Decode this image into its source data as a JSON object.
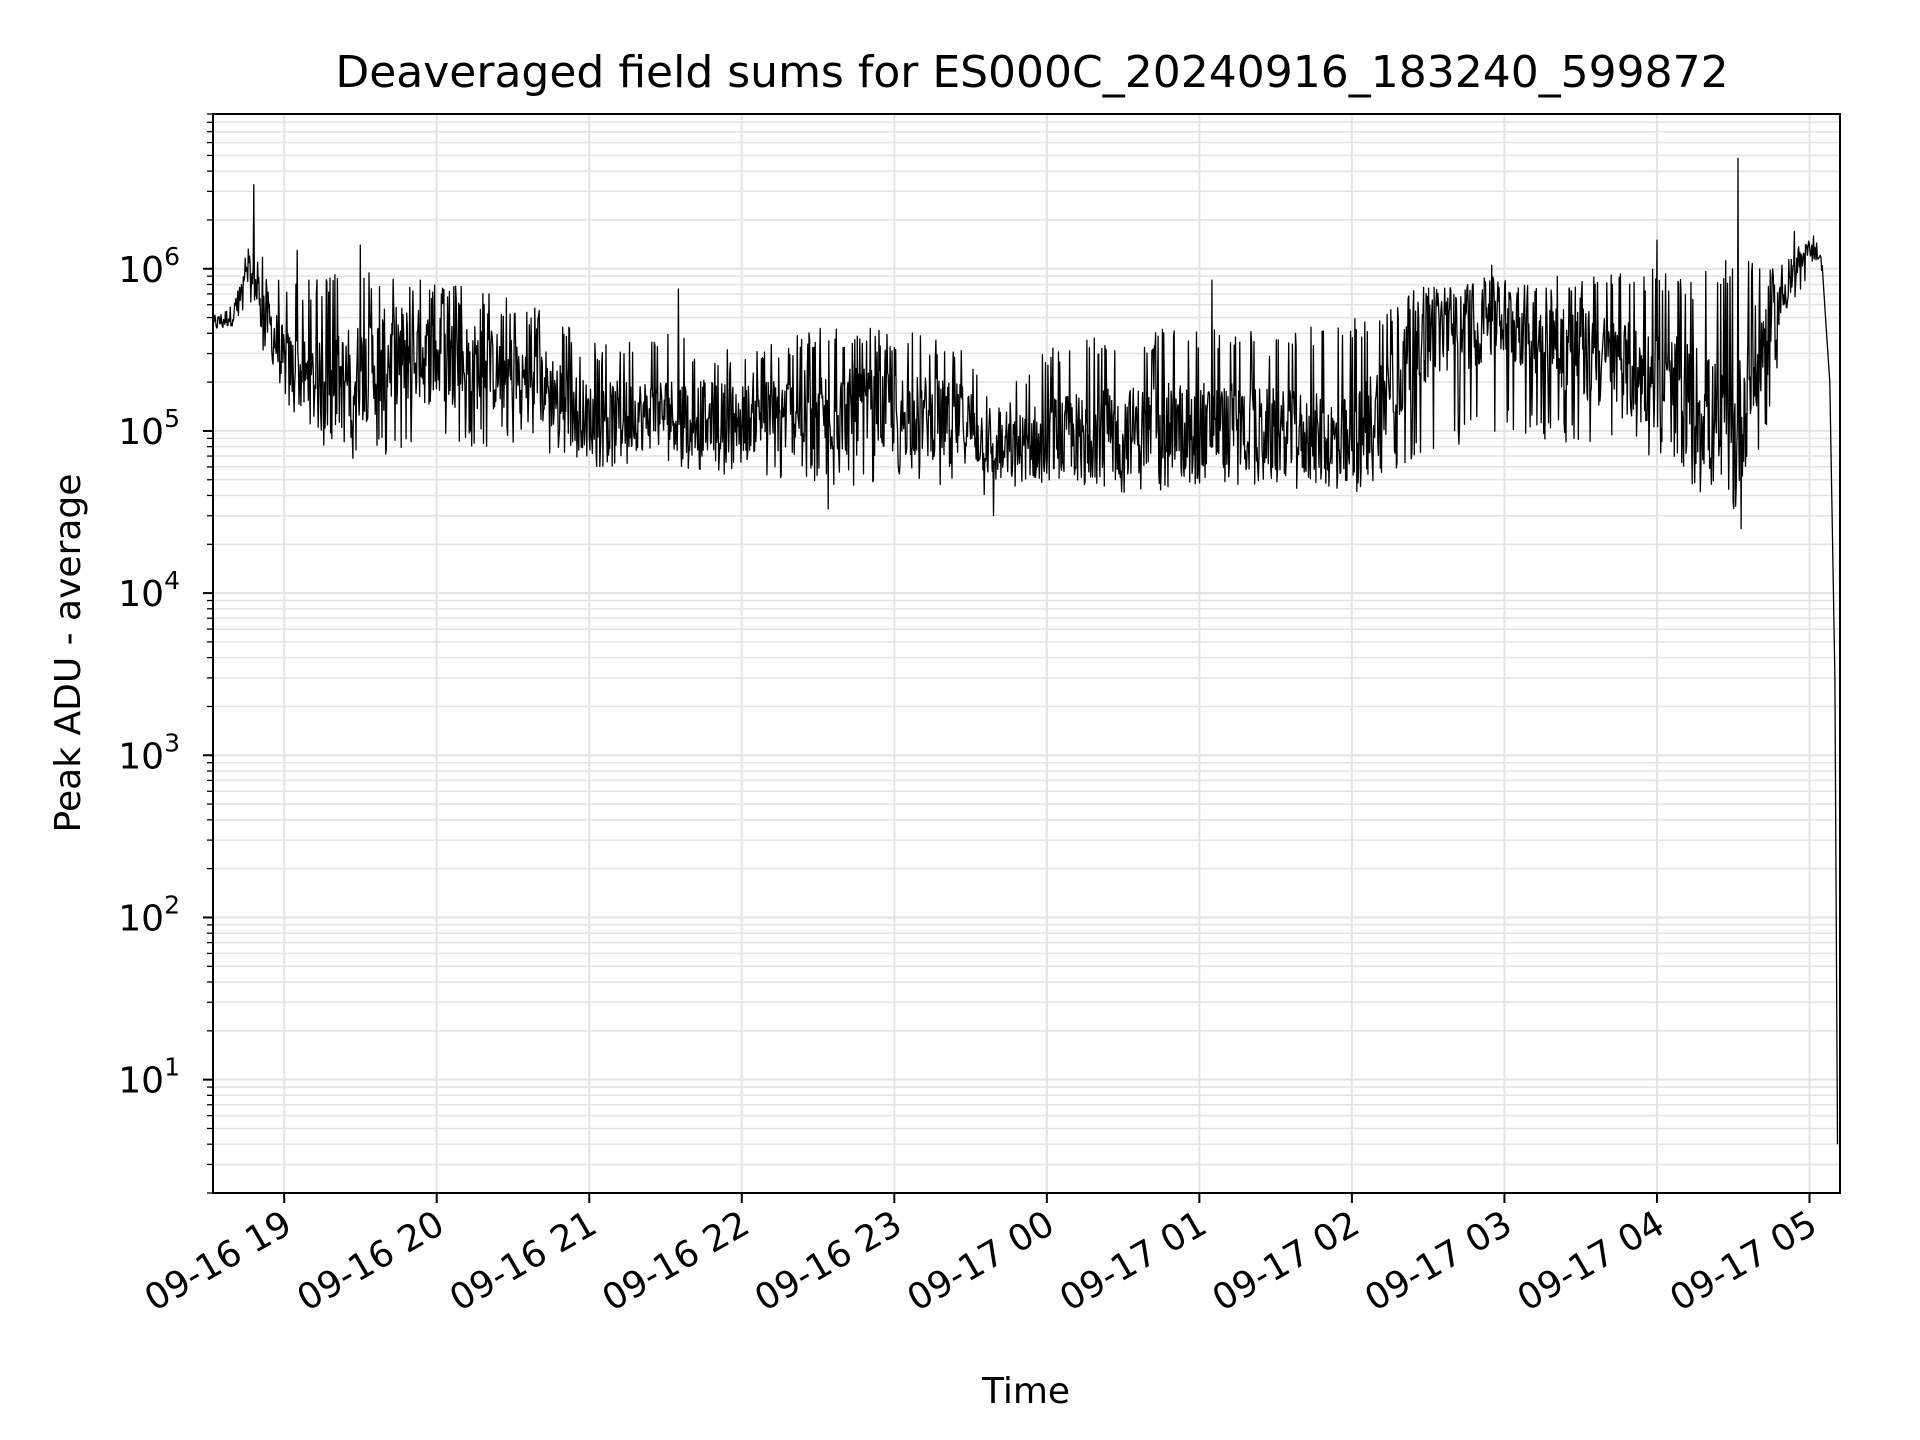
{
  "chart_data": {
    "type": "line",
    "title": "Deaveraged field sums for ES000C_20240916_183240_599872",
    "xlabel": "Time",
    "ylabel": "Peak ADU - average",
    "yscale": "log",
    "grid": true,
    "grid_color": "#e3e3e3",
    "line_color": "#000000",
    "legend": "none",
    "xlim": [
      "2024-09-16 18:32",
      "2024-09-17 05:12"
    ],
    "ylim": [
      2,
      9000000
    ],
    "x_ticks": [
      {
        "t": "2024-09-16 19:00",
        "label": "09-16 19"
      },
      {
        "t": "2024-09-16 20:00",
        "label": "09-16 20"
      },
      {
        "t": "2024-09-16 21:00",
        "label": "09-16 21"
      },
      {
        "t": "2024-09-16 22:00",
        "label": "09-16 22"
      },
      {
        "t": "2024-09-16 23:00",
        "label": "09-16 23"
      },
      {
        "t": "2024-09-17 00:00",
        "label": "09-17 00"
      },
      {
        "t": "2024-09-17 01:00",
        "label": "09-17 01"
      },
      {
        "t": "2024-09-17 02:00",
        "label": "09-17 02"
      },
      {
        "t": "2024-09-17 03:00",
        "label": "09-17 03"
      },
      {
        "t": "2024-09-17 04:00",
        "label": "09-17 04"
      },
      {
        "t": "2024-09-17 05:00",
        "label": "09-17 05"
      }
    ],
    "y_ticks": [
      {
        "value": 10,
        "base": "10",
        "exp": "1"
      },
      {
        "value": 100,
        "base": "10",
        "exp": "2"
      },
      {
        "value": 1000,
        "base": "10",
        "exp": "3"
      },
      {
        "value": 10000,
        "base": "10",
        "exp": "4"
      },
      {
        "value": 100000,
        "base": "10",
        "exp": "5"
      },
      {
        "value": 1000000,
        "base": "10",
        "exp": "6"
      }
    ],
    "series": [
      {
        "envelope": [
          {
            "t": "2024-09-16 18:32",
            "low": 380000,
            "mid": 450000,
            "high": 550000
          },
          {
            "t": "2024-09-16 18:40",
            "low": 400000,
            "mid": 520000,
            "high": 700000
          },
          {
            "t": "2024-09-16 18:46",
            "low": 500000,
            "mid": 900000,
            "high": 1500000
          },
          {
            "t": "2024-09-16 18:50",
            "low": 350000,
            "mid": 700000,
            "high": 1300000
          },
          {
            "t": "2024-09-16 19:00",
            "low": 150000,
            "mid": 260000,
            "high": 900000
          },
          {
            "t": "2024-09-16 19:15",
            "low": 80000,
            "mid": 180000,
            "high": 900000
          },
          {
            "t": "2024-09-16 19:30",
            "low": 65000,
            "mid": 230000,
            "high": 1000000
          },
          {
            "t": "2024-09-16 19:45",
            "low": 70000,
            "mid": 300000,
            "high": 950000
          },
          {
            "t": "2024-09-16 20:00",
            "low": 75000,
            "mid": 280000,
            "high": 850000
          },
          {
            "t": "2024-09-16 20:15",
            "low": 80000,
            "mid": 250000,
            "high": 750000
          },
          {
            "t": "2024-09-16 20:30",
            "low": 75000,
            "mid": 220000,
            "high": 650000
          },
          {
            "t": "2024-09-16 20:45",
            "low": 70000,
            "mid": 180000,
            "high": 550000
          },
          {
            "t": "2024-09-16 21:00",
            "low": 60000,
            "mid": 120000,
            "high": 350000
          },
          {
            "t": "2024-09-16 21:30",
            "low": 60000,
            "mid": 130000,
            "high": 400000
          },
          {
            "t": "2024-09-16 22:00",
            "low": 50000,
            "mid": 120000,
            "high": 300000
          },
          {
            "t": "2024-09-16 22:30",
            "low": 45000,
            "mid": 130000,
            "high": 450000
          },
          {
            "t": "2024-09-16 23:00",
            "low": 45000,
            "mid": 130000,
            "high": 420000
          },
          {
            "t": "2024-09-16 23:30",
            "low": 45000,
            "mid": 110000,
            "high": 350000
          },
          {
            "t": "2024-09-16 23:40",
            "low": 35000,
            "mid": 70000,
            "high": 150000
          },
          {
            "t": "2024-09-17 00:00",
            "low": 40000,
            "mid": 90000,
            "high": 350000
          },
          {
            "t": "2024-09-17 00:30",
            "low": 40000,
            "mid": 100000,
            "high": 400000
          },
          {
            "t": "2024-09-17 01:00",
            "low": 45000,
            "mid": 110000,
            "high": 450000
          },
          {
            "t": "2024-09-17 01:30",
            "low": 45000,
            "mid": 100000,
            "high": 400000
          },
          {
            "t": "2024-09-17 02:00",
            "low": 40000,
            "mid": 80000,
            "high": 500000
          },
          {
            "t": "2024-09-17 02:30",
            "low": 70000,
            "mid": 400000,
            "high": 800000
          },
          {
            "t": "2024-09-17 03:00",
            "low": 100000,
            "mid": 500000,
            "high": 900000
          },
          {
            "t": "2024-09-17 03:30",
            "low": 80000,
            "mid": 300000,
            "high": 900000
          },
          {
            "t": "2024-09-17 04:00",
            "low": 70000,
            "mid": 200000,
            "high": 1000000
          },
          {
            "t": "2024-09-17 04:15",
            "low": 40000,
            "mid": 150000,
            "high": 900000
          },
          {
            "t": "2024-09-17 04:30",
            "low": 30000,
            "mid": 80000,
            "high": 1200000
          },
          {
            "t": "2024-09-17 04:40",
            "low": 60000,
            "mid": 300000,
            "high": 1200000
          },
          {
            "t": "2024-09-17 04:50",
            "low": 400000,
            "mid": 700000,
            "high": 1300000
          },
          {
            "t": "2024-09-17 05:02",
            "low": 1100000,
            "mid": 1500000,
            "high": 1600000
          },
          {
            "t": "2024-09-17 05:05",
            "low": 800000,
            "mid": 1000000,
            "high": 1200000
          }
        ],
        "spikes": [
          {
            "t": "2024-09-16 18:48",
            "value": 3300000
          },
          {
            "t": "2024-09-16 19:05",
            "value": 1300000
          },
          {
            "t": "2024-09-16 19:30",
            "value": 1400000
          },
          {
            "t": "2024-09-16 21:35",
            "value": 750000
          },
          {
            "t": "2024-09-17 01:05",
            "value": 850000
          },
          {
            "t": "2024-09-17 02:55",
            "value": 1050000
          },
          {
            "t": "2024-09-17 04:00",
            "value": 1500000
          },
          {
            "t": "2024-09-17 04:32",
            "value": 4800000
          },
          {
            "t": "2024-09-17 04:54",
            "value": 1700000
          }
        ],
        "dips": [
          {
            "t": "2024-09-17 04:33",
            "value": 25000
          },
          {
            "t": "2024-09-16 23:39",
            "value": 30000
          },
          {
            "t": "2024-09-16 22:34",
            "value": 33000
          }
        ],
        "tail": [
          {
            "t": "2024-09-17 05:06",
            "value": 600000
          },
          {
            "t": "2024-09-17 05:08",
            "value": 200000
          },
          {
            "t": "2024-09-17 05:10",
            "value": 3000
          },
          {
            "t": "2024-09-17 05:11",
            "value": 4
          }
        ]
      }
    ]
  }
}
